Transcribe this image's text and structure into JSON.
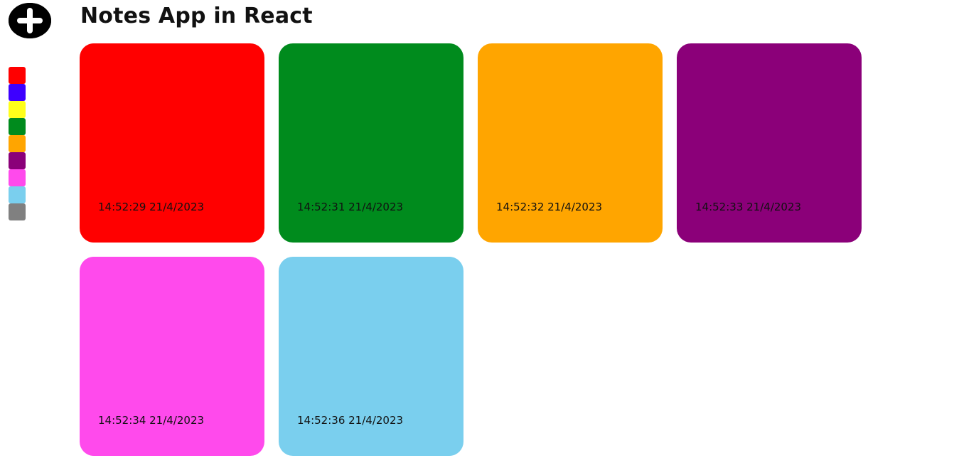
{
  "header": {
    "title": "Notes App in React"
  },
  "sidebar": {
    "add_icon": "plus-circle-icon",
    "colors": [
      "#ff0000",
      "#3d00ff",
      "#ffff1a",
      "#008b1d",
      "#ffa500",
      "#8b0079",
      "#ff4aec",
      "#7acfee",
      "#808080"
    ]
  },
  "notes": [
    {
      "color": "#ff0000",
      "time": "14:52:29 21/4/2023"
    },
    {
      "color": "#008b1d",
      "time": "14:52:31 21/4/2023"
    },
    {
      "color": "#ffa500",
      "time": "14:52:32 21/4/2023"
    },
    {
      "color": "#8b0079",
      "time": "14:52:33 21/4/2023"
    },
    {
      "color": "#ff4aec",
      "time": "14:52:34 21/4/2023"
    },
    {
      "color": "#7acfee",
      "time": "14:52:36 21/4/2023"
    }
  ]
}
